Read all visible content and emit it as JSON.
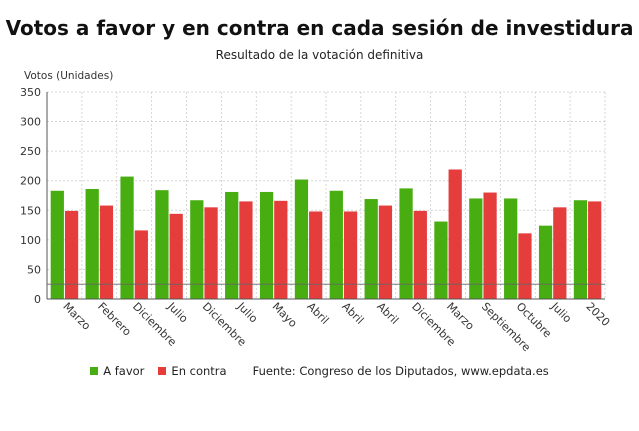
{
  "title": "Votos a favor y en contra en cada sesión de investidura",
  "subtitle": "Resultado de la votación definitiva",
  "source": "Fuente: Congreso de los Diputados, www.epdata.es",
  "colors": {
    "favor": "#48ad10",
    "contra": "#e43d3c",
    "grid": "#cccccc",
    "axis": "#555555"
  },
  "chart_data": {
    "type": "bar",
    "ylabel": "Votos (Unidades)",
    "xlabel": "",
    "ylim": [
      0,
      350
    ],
    "yticks": [
      0,
      50,
      100,
      150,
      200,
      250,
      300,
      350
    ],
    "reference_line": 25,
    "grid": true,
    "legend_position": "bottom",
    "categories": [
      "Marzo",
      "Febrero",
      "Diciembre",
      "Julio",
      "Diciembre",
      "Julio",
      "Mayo",
      "Abril",
      "Abril",
      "Abril",
      "Diciembre",
      "Marzo",
      "Septiembre",
      "Octubre",
      "Julio",
      "2020"
    ],
    "series": [
      {
        "name": "A favor",
        "values": [
          183,
          186,
          207,
          184,
          167,
          181,
          181,
          202,
          183,
          169,
          187,
          131,
          170,
          170,
          124,
          167
        ]
      },
      {
        "name": "En contra",
        "values": [
          149,
          158,
          116,
          144,
          155,
          165,
          166,
          148,
          148,
          158,
          149,
          219,
          180,
          111,
          155,
          165
        ]
      }
    ]
  }
}
